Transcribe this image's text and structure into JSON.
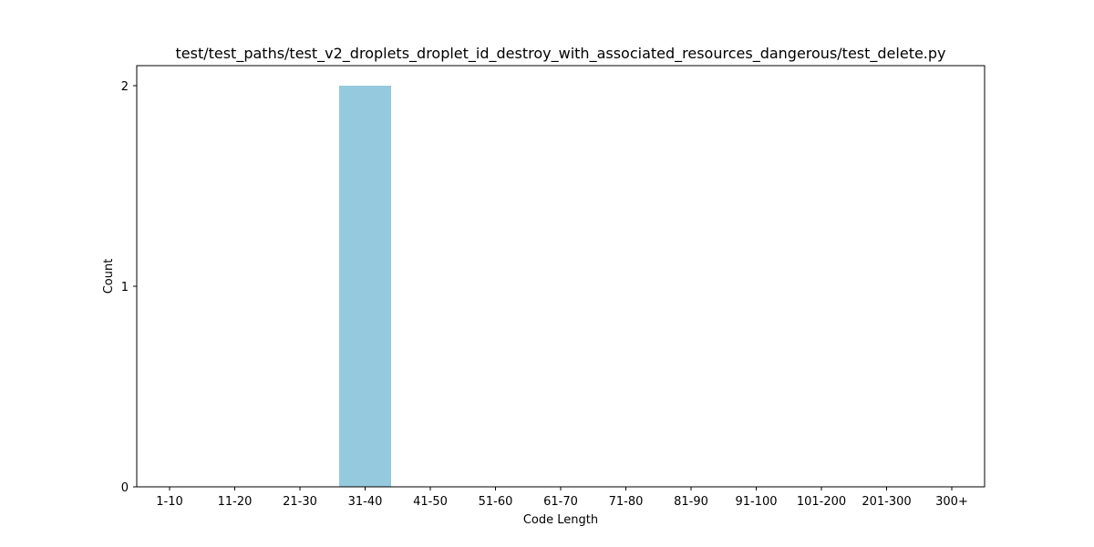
{
  "chart_data": {
    "type": "bar",
    "title": "test/test_paths/test_v2_droplets_droplet_id_destroy_with_associated_resources_dangerous/test_delete.py",
    "xlabel": "Code Length",
    "ylabel": "Count",
    "categories": [
      "1-10",
      "11-20",
      "21-30",
      "31-40",
      "41-50",
      "51-60",
      "61-70",
      "71-80",
      "81-90",
      "91-100",
      "101-200",
      "201-300",
      "300+"
    ],
    "values": [
      0,
      0,
      0,
      2,
      0,
      0,
      0,
      0,
      0,
      0,
      0,
      0,
      0
    ],
    "ylim": [
      0,
      2.1
    ],
    "yticks": [
      0,
      1,
      2
    ],
    "bar_color": "#95c9de",
    "grid": false,
    "legend": "none"
  }
}
